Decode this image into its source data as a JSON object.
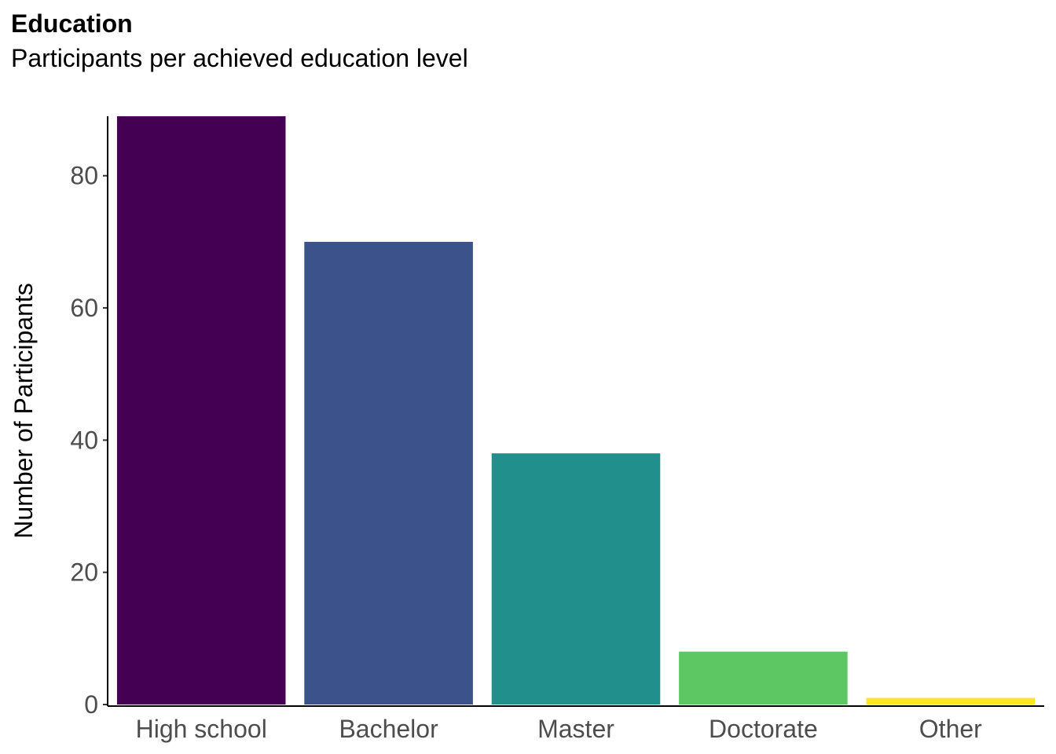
{
  "chart_data": {
    "type": "bar",
    "title": "Education",
    "subtitle": "Participants per achieved education level",
    "xlabel": "",
    "ylabel": "Number of Participants",
    "categories": [
      "High school",
      "Bachelor",
      "Master",
      "Doctorate",
      "Other"
    ],
    "values": [
      89,
      70,
      38,
      8,
      1
    ],
    "colors": [
      "#440154",
      "#3b528b",
      "#21908c",
      "#5dc863",
      "#fde725"
    ],
    "ylim": [
      0,
      89
    ],
    "yticks": [
      0,
      20,
      40,
      60,
      80
    ],
    "grid": false,
    "legend": "none"
  }
}
